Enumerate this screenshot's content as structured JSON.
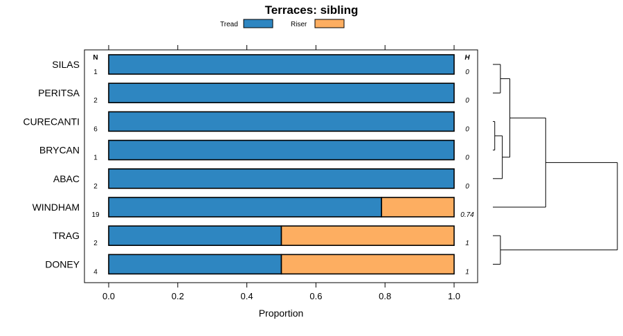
{
  "chart_data": {
    "type": "bar",
    "orientation": "horizontal",
    "stacked": true,
    "title": "Terraces: sibling",
    "xlabel": "Proportion",
    "ylabel": "",
    "xlim": [
      -0.05,
      1.07
    ],
    "xticks": [
      "0.0",
      "0.2",
      "0.4",
      "0.6",
      "0.8",
      "1.0"
    ],
    "xtick_values": [
      0,
      0.2,
      0.4,
      0.6,
      0.8,
      1.0
    ],
    "legend_position": "top",
    "n_header": "N",
    "h_header": "H",
    "categories": [
      "SILAS",
      "PERITSA",
      "CURECANTI",
      "BRYCAN",
      "ABAC",
      "WINDHAM",
      "TRAG",
      "DONEY"
    ],
    "n_values": [
      "1",
      "2",
      "6",
      "1",
      "2",
      "19",
      "2",
      "4"
    ],
    "h_values": [
      "0",
      "0",
      "0",
      "0",
      "0",
      "0.74",
      "1",
      "1"
    ],
    "series": [
      {
        "name": "Tread",
        "color": "#2E86C1",
        "values": [
          1,
          1,
          1,
          1,
          1,
          0.79,
          0.5,
          0.5
        ]
      },
      {
        "name": "Riser",
        "color": "#FDAE61",
        "values": [
          0,
          0,
          0,
          0,
          0,
          0.21,
          0.5,
          0.5
        ]
      }
    ],
    "dendrogram": {
      "leaf_order": [
        "SILAS",
        "PERITSA",
        "CURECANTI",
        "BRYCAN",
        "ABAC",
        "WINDHAM",
        "TRAG",
        "DONEY"
      ],
      "merges": [
        {
          "a": "SILAS",
          "b": "PERITSA",
          "height": 0.02
        },
        {
          "a": "CURECANTI",
          "b": "BRYCAN",
          "height": 0.005
        },
        {
          "a": "CURECANTI|BRYCAN",
          "b": "ABAC",
          "height": 0.025
        },
        {
          "a": "SILAS|PERITSA",
          "b": "CURECANTI|BRYCAN|ABAC",
          "height": 0.045
        },
        {
          "a": "SILAS|PERITSA|CURECANTI|BRYCAN|ABAC",
          "b": "WINDHAM",
          "height": 0.14
        },
        {
          "a": "TRAG",
          "b": "DONEY",
          "height": 0.02
        },
        {
          "a": "SILAS|PERITSA|CURECANTI|BRYCAN|ABAC|WINDHAM",
          "b": "TRAG|DONEY",
          "height": 0.33
        }
      ]
    }
  }
}
